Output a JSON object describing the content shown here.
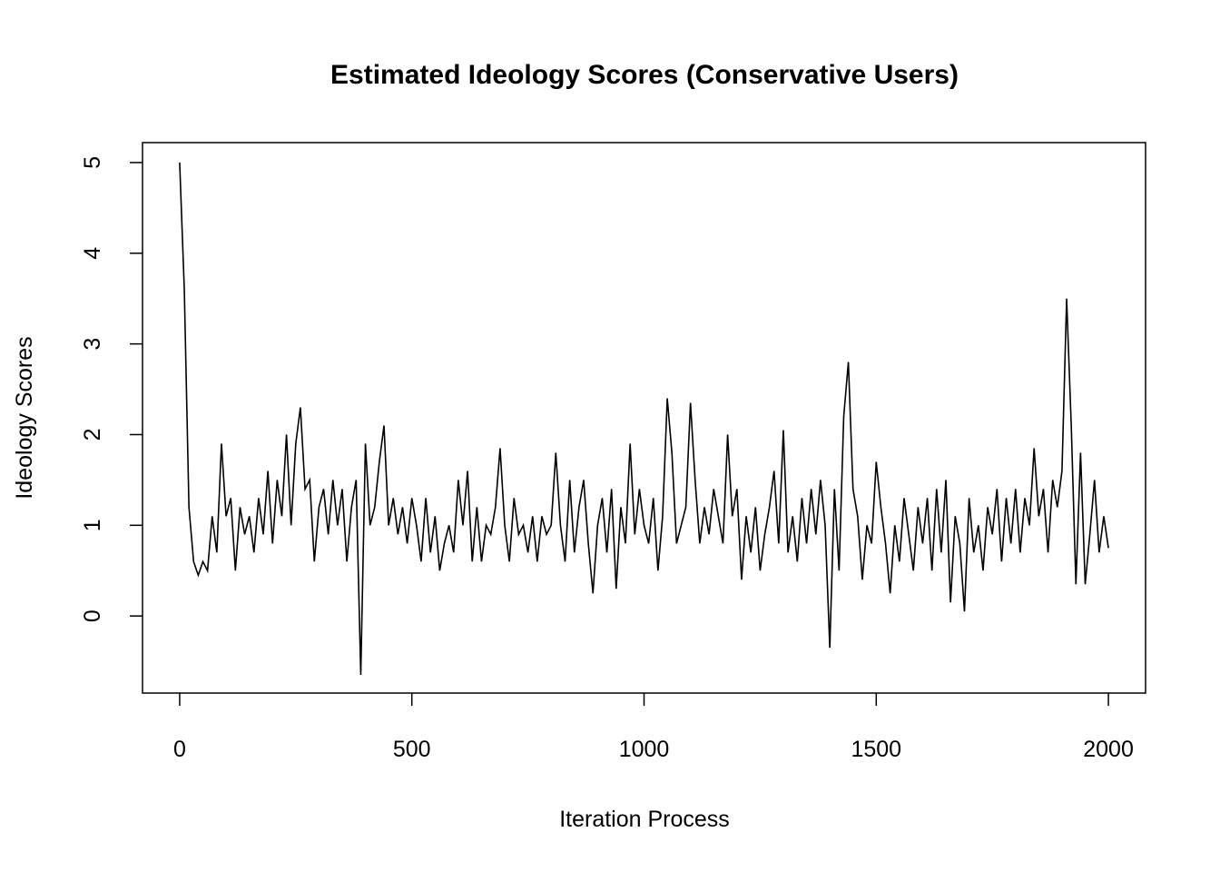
{
  "chart_data": {
    "type": "line",
    "title": "Estimated Ideology Scores (Conservative Users)",
    "x_label": "Iteration Process",
    "y_label": "Ideology Scores",
    "x": [
      0,
      10,
      20,
      30,
      40,
      50,
      60,
      70,
      80,
      90,
      100,
      110,
      120,
      130,
      140,
      150,
      160,
      170,
      180,
      190,
      200,
      210,
      220,
      230,
      240,
      250,
      260,
      270,
      280,
      290,
      300,
      310,
      320,
      330,
      340,
      350,
      360,
      370,
      380,
      390,
      400,
      410,
      420,
      430,
      440,
      450,
      460,
      470,
      480,
      490,
      500,
      510,
      520,
      530,
      540,
      550,
      560,
      570,
      580,
      590,
      600,
      610,
      620,
      630,
      640,
      650,
      660,
      670,
      680,
      690,
      700,
      710,
      720,
      730,
      740,
      750,
      760,
      770,
      780,
      790,
      800,
      810,
      820,
      830,
      840,
      850,
      860,
      870,
      880,
      890,
      900,
      910,
      920,
      930,
      940,
      950,
      960,
      970,
      980,
      990,
      1000,
      1010,
      1020,
      1030,
      1040,
      1050,
      1060,
      1070,
      1080,
      1090,
      1100,
      1110,
      1120,
      1130,
      1140,
      1150,
      1160,
      1170,
      1180,
      1190,
      1200,
      1210,
      1220,
      1230,
      1240,
      1250,
      1260,
      1270,
      1280,
      1290,
      1300,
      1310,
      1320,
      1330,
      1340,
      1350,
      1360,
      1370,
      1380,
      1390,
      1400,
      1410,
      1420,
      1430,
      1440,
      1450,
      1460,
      1470,
      1480,
      1490,
      1500,
      1510,
      1520,
      1530,
      1540,
      1550,
      1560,
      1570,
      1580,
      1590,
      1600,
      1610,
      1620,
      1630,
      1640,
      1650,
      1660,
      1670,
      1680,
      1690,
      1700,
      1710,
      1720,
      1730,
      1740,
      1750,
      1760,
      1770,
      1780,
      1790,
      1800,
      1810,
      1820,
      1830,
      1840,
      1850,
      1860,
      1870,
      1880,
      1890,
      1900,
      1910,
      1920,
      1930,
      1940,
      1950,
      1960,
      1970,
      1980,
      1990,
      2000
    ],
    "series": [
      {
        "color": "#000000",
        "values": [
          5,
          3.6,
          1.2,
          0.6,
          0.45,
          0.6,
          0.5,
          1.1,
          0.7,
          1.9,
          1.1,
          1.3,
          0.5,
          1.2,
          0.9,
          1.1,
          0.7,
          1.3,
          0.9,
          1.6,
          0.8,
          1.5,
          1.1,
          2.0,
          1.0,
          1.9,
          2.3,
          1.4,
          1.5,
          0.6,
          1.2,
          1.4,
          0.9,
          1.5,
          1.0,
          1.4,
          0.6,
          1.2,
          1.5,
          -0.65,
          1.9,
          1.0,
          1.2,
          1.7,
          2.1,
          1.0,
          1.3,
          0.9,
          1.2,
          0.8,
          1.3,
          1.0,
          0.6,
          1.3,
          0.7,
          1.1,
          0.5,
          0.8,
          1.0,
          0.7,
          1.5,
          1.0,
          1.6,
          0.6,
          1.2,
          0.6,
          1.0,
          0.9,
          1.2,
          1.85,
          1.0,
          0.6,
          1.3,
          0.9,
          1.0,
          0.7,
          1.1,
          0.6,
          1.1,
          0.9,
          1.0,
          1.8,
          1.0,
          0.6,
          1.5,
          0.7,
          1.2,
          1.5,
          0.8,
          0.25,
          1.0,
          1.3,
          0.7,
          1.4,
          0.3,
          1.2,
          0.8,
          1.9,
          0.9,
          1.4,
          1.0,
          0.8,
          1.3,
          0.5,
          1.1,
          2.4,
          1.8,
          0.8,
          1.0,
          1.2,
          2.35,
          1.5,
          0.8,
          1.2,
          0.9,
          1.4,
          1.1,
          0.8,
          2.0,
          1.1,
          1.4,
          0.4,
          1.1,
          0.7,
          1.2,
          0.5,
          0.9,
          1.2,
          1.6,
          0.8,
          2.05,
          0.7,
          1.1,
          0.6,
          1.3,
          0.8,
          1.4,
          0.9,
          1.5,
          1.0,
          -0.35,
          1.4,
          0.5,
          2.2,
          2.8,
          1.4,
          1.1,
          0.4,
          1.0,
          0.8,
          1.7,
          1.2,
          0.8,
          0.25,
          1.0,
          0.6,
          1.3,
          0.9,
          0.5,
          1.2,
          0.8,
          1.3,
          0.5,
          1.4,
          0.7,
          1.5,
          0.15,
          1.1,
          0.8,
          0.05,
          1.3,
          0.7,
          1.0,
          0.5,
          1.2,
          0.9,
          1.4,
          0.6,
          1.3,
          0.8,
          1.4,
          0.7,
          1.3,
          1.0,
          1.85,
          1.1,
          1.4,
          0.7,
          1.5,
          1.2,
          1.6,
          3.5,
          2.1,
          0.35,
          1.8,
          0.35,
          0.9,
          1.5,
          0.7,
          1.1,
          0.75
        ]
      }
    ],
    "xlim": [
      -80,
      2080
    ],
    "ylim": [
      -0.85,
      5.22
    ],
    "xticks": [
      0,
      500,
      1000,
      1500,
      2000
    ],
    "yticks": [
      0,
      1,
      2,
      3,
      4,
      5
    ]
  }
}
